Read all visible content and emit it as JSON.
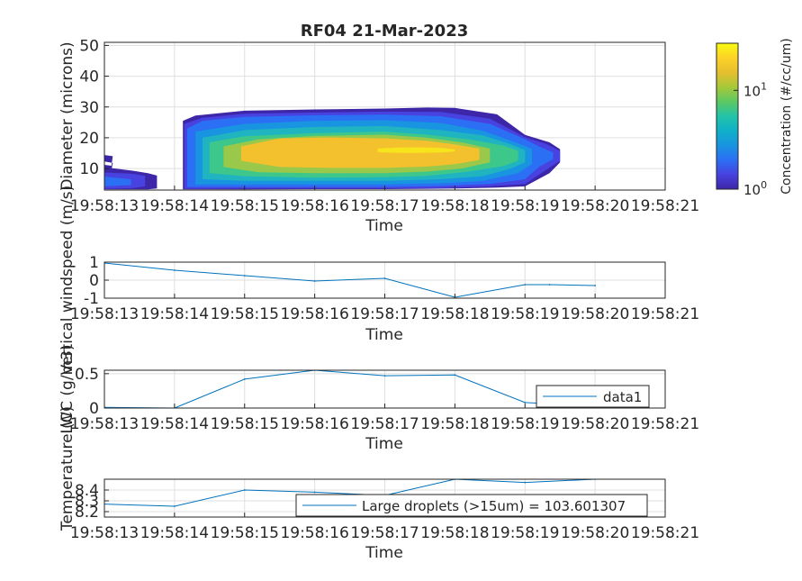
{
  "figure": {
    "title": "RF04 21-Mar-2023"
  },
  "time_ticks": [
    "19:58:13",
    "19:58:14",
    "19:58:15",
    "19:58:16",
    "19:58:17",
    "19:58:18",
    "19:58:19",
    "19:58:20",
    "19:58:21"
  ],
  "chart_data": [
    {
      "type": "heatmap",
      "title": "RF04 21-Mar-2023",
      "xlabel": "Time",
      "ylabel": "Diameter (microns)",
      "xlim": [
        "19:58:13",
        "19:58:21"
      ],
      "ylim": [
        3,
        51
      ],
      "yticks": [
        10,
        20,
        30,
        40,
        50
      ],
      "grid": true,
      "colorbar": {
        "label": "Concentration (#/cc/um)",
        "scale": "log",
        "range": [
          1,
          30
        ],
        "ticks": [
          {
            "value": 1,
            "label": "10",
            "exp": "0"
          },
          {
            "value": 10,
            "label": "10",
            "exp": "1"
          }
        ],
        "colormap": [
          "#3e26a8",
          "#4742e0",
          "#2b6ff4",
          "#1994e0",
          "#0fb0c8",
          "#22c3a8",
          "#5cc863",
          "#a6c839",
          "#e6bf2f",
          "#fcd227",
          "#f9fb0e"
        ]
      },
      "levels": [
        {
          "level": 1,
          "color": "#3e26a8",
          "regions": [
            {
              "t": [
                13.0,
                13.12,
                13.1,
                13.0
              ],
              "d": [
                [
                  12.3,
                  14.4
                ],
                [
                  11.8,
                  14.0
                ],
                [
                  9.5,
                  10.9
                ],
                [
                  9.6,
                  11.2
                ]
              ]
            },
            {
              "t": [
                13.0,
                13.4,
                13.62,
                13.75
              ],
              "d": [
                [
                  3.2,
                  10.4
                ],
                [
                  3.2,
                  9.3
                ],
                [
                  3.2,
                  8.5
                ],
                [
                  3.5,
                  7.7
                ]
              ]
            },
            {
              "t": [
                14.12,
                14.3,
                15.0,
                16.0,
                17.0,
                17.6,
                18.0,
                18.6,
                19.0,
                19.35,
                19.5
              ],
              "d": [
                [
                  3.2,
                  25.5
                ],
                [
                  3.2,
                  27.2
                ],
                [
                  3.2,
                  28.8
                ],
                [
                  3.3,
                  29.2
                ],
                [
                  3.3,
                  29.5
                ],
                [
                  3.4,
                  29.8
                ],
                [
                  3.5,
                  29.7
                ],
                [
                  3.8,
                  27.6
                ],
                [
                  4.2,
                  20.9
                ],
                [
                  8.5,
                  18.5
                ],
                [
                  12.0,
                  16.3
                ]
              ]
            }
          ]
        },
        {
          "level": 2,
          "color": "#4742e0",
          "regions": [
            {
              "t": [
                13.0,
                13.4,
                13.58
              ],
              "d": [
                [
                  3.4,
                  8.7
                ],
                [
                  3.6,
                  8.3
                ],
                [
                  4.2,
                  7.6
                ]
              ]
            },
            {
              "t": [
                14.14,
                14.4,
                15.0,
                16.0,
                17.0,
                17.8,
                18.5,
                19.0,
                19.3,
                19.5
              ],
              "d": [
                [
                  3.4,
                  24.5
                ],
                [
                  3.4,
                  26.5
                ],
                [
                  3.5,
                  27.8
                ],
                [
                  3.5,
                  28.2
                ],
                [
                  3.5,
                  28.5
                ],
                [
                  3.6,
                  28.4
                ],
                [
                  4.2,
                  26.2
                ],
                [
                  5.0,
                  20.2
                ],
                [
                  9.5,
                  18.0
                ],
                [
                  12.5,
                  15.7
                ]
              ]
            }
          ]
        },
        {
          "level": 3,
          "color": "#2b6ff4",
          "regions": [
            {
              "t": [
                13.0,
                13.38
              ],
              "d": [
                [
                  4.2,
                  7.4
                ],
                [
                  4.6,
                  6.5
                ]
              ]
            },
            {
              "t": [
                14.18,
                14.4,
                15.0,
                16.0,
                17.0,
                17.8,
                18.5,
                19.0,
                19.2,
                19.4
              ],
              "d": [
                [
                  4.0,
                  23.0
                ],
                [
                  4.0,
                  25.5
                ],
                [
                  4.0,
                  26.8
                ],
                [
                  4.0,
                  27.3
                ],
                [
                  4.0,
                  27.5
                ],
                [
                  4.3,
                  27.0
                ],
                [
                  5.0,
                  24.5
                ],
                [
                  6.5,
                  19.5
                ],
                [
                  10.5,
                  17.2
                ],
                [
                  13.0,
                  15.2
                ]
              ]
            }
          ]
        },
        {
          "level": 4,
          "color": "#1994e0",
          "regions": [
            {
              "t": [
                14.3,
                15.0,
                16.0,
                17.0,
                17.8,
                18.4,
                18.9,
                19.1
              ],
              "d": [
                [
                  4.8,
                  22.0
                ],
                [
                  4.8,
                  24.5
                ],
                [
                  4.8,
                  25.5
                ],
                [
                  4.8,
                  25.7
                ],
                [
                  5.2,
                  24.8
                ],
                [
                  6.0,
                  22.3
                ],
                [
                  8.5,
                  18.2
                ],
                [
                  11.5,
                  16.4
                ]
              ]
            }
          ]
        },
        {
          "level": 5,
          "color": "#1fb4c0",
          "regions": [
            {
              "t": [
                14.4,
                15.0,
                16.0,
                17.0,
                17.8,
                18.4,
                18.8,
                19.0
              ],
              "d": [
                [
                  6.5,
                  20.0
                ],
                [
                  6.0,
                  22.5
                ],
                [
                  6.0,
                  23.5
                ],
                [
                  6.0,
                  23.8
                ],
                [
                  6.5,
                  22.5
                ],
                [
                  7.5,
                  20.8
                ],
                [
                  10.0,
                  17.8
                ],
                [
                  12.0,
                  16.0
                ]
              ]
            }
          ]
        },
        {
          "level": 6,
          "color": "#3ec78a",
          "regions": [
            {
              "t": [
                14.5,
                15.0,
                16.0,
                17.0,
                17.6,
                18.2,
                18.7,
                18.9
              ],
              "d": [
                [
                  8.5,
                  18.5
                ],
                [
                  7.5,
                  20.5
                ],
                [
                  7.0,
                  21.5
                ],
                [
                  7.2,
                  22.0
                ],
                [
                  7.6,
                  21.0
                ],
                [
                  9.0,
                  19.5
                ],
                [
                  10.8,
                  17.4
                ],
                [
                  12.5,
                  15.8
                ]
              ]
            }
          ]
        },
        {
          "level": 7,
          "color": "#99c84a",
          "regions": [
            {
              "t": [
                14.7,
                15.2,
                16.0,
                17.0,
                17.6,
                18.1,
                18.5
              ],
              "d": [
                [
                  10.5,
                  17.2
                ],
                [
                  8.8,
                  19.5
                ],
                [
                  8.5,
                  20.6
                ],
                [
                  8.5,
                  21.0
                ],
                [
                  9.0,
                  20.0
                ],
                [
                  10.0,
                  18.5
                ],
                [
                  12.0,
                  16.5
                ]
              ]
            }
          ]
        },
        {
          "level": 8,
          "color": "#f3c02e",
          "regions": [
            {
              "t": [
                14.95,
                15.5,
                16.2,
                17.0,
                17.6,
                18.0,
                18.35
              ],
              "d": [
                [
                  12.5,
                  17.2
                ],
                [
                  10.5,
                  19.8
                ],
                [
                  10.2,
                  20.1
                ],
                [
                  10.2,
                  19.8
                ],
                [
                  10.6,
                  19.0
                ],
                [
                  11.4,
                  17.8
                ],
                [
                  12.8,
                  16.5
                ]
              ]
            }
          ]
        },
        {
          "level": 9,
          "color": "#f7e41c",
          "regions": [
            {
              "t": [
                16.9,
                17.2,
                17.5,
                17.8,
                18.0
              ],
              "d": [
                [
                  15.3,
                  16.5
                ],
                [
                  15.1,
                  16.8
                ],
                [
                  15.1,
                  16.9
                ],
                [
                  15.2,
                  16.7
                ],
                [
                  15.5,
                  16.2
                ]
              ]
            }
          ]
        }
      ]
    },
    {
      "type": "line",
      "xlabel": "Time",
      "ylabel": "Vertical windspeed (m/s)",
      "xlim": [
        "19:58:13",
        "19:58:21"
      ],
      "ylim": [
        -1,
        1
      ],
      "yticks": [
        -1,
        0,
        1
      ],
      "grid": true,
      "color": "#0072bd",
      "x": [
        13.0,
        14.0,
        15.0,
        16.0,
        17.0,
        18.0,
        19.0,
        19.35,
        20.0
      ],
      "y": [
        0.95,
        0.55,
        0.25,
        -0.05,
        0.1,
        -0.95,
        -0.25,
        -0.25,
        -0.3
      ]
    },
    {
      "type": "line",
      "xlabel": "Time",
      "ylabel": "LWC (g/m3)",
      "xlim": [
        "19:58:13",
        "19:58:21"
      ],
      "ylim": [
        0,
        0.55
      ],
      "yticks": [
        0,
        0.5
      ],
      "grid": true,
      "color": "#0072bd",
      "legend": {
        "placement": "bottom-right",
        "entries": [
          "data1"
        ]
      },
      "x": [
        13.0,
        14.0,
        15.0,
        16.0,
        17.0,
        18.0,
        19.0,
        20.0
      ],
      "y": [
        0.01,
        0.0,
        0.42,
        0.55,
        0.47,
        0.48,
        0.08,
        0.03
      ]
    },
    {
      "type": "line",
      "xlabel": "Time",
      "ylabel": "Temperature (C)",
      "xlim": [
        "19:58:13",
        "19:58:21"
      ],
      "ylim": [
        8.15,
        8.5
      ],
      "yticks": [
        8.2,
        8.3,
        8.4
      ],
      "grid": true,
      "color": "#0072bd",
      "legend": {
        "placement": "bottom-right",
        "entries": [
          "Large droplets (>15um) = 103.601307"
        ]
      },
      "x": [
        13.0,
        14.0,
        15.0,
        16.0,
        17.0,
        18.0,
        19.0,
        20.0
      ],
      "y": [
        8.27,
        8.25,
        8.4,
        8.38,
        8.35,
        8.5,
        8.47,
        8.5
      ]
    }
  ]
}
